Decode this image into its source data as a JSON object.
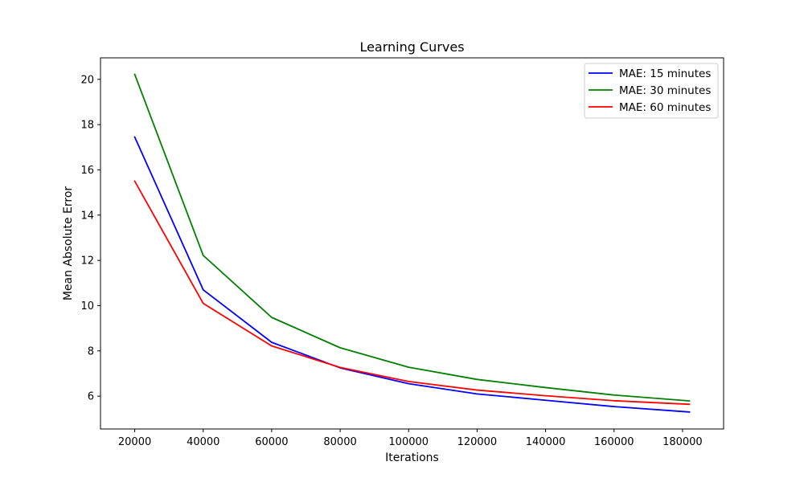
{
  "chart_data": {
    "type": "line",
    "title": "Learning Curves",
    "xlabel": "Iterations",
    "ylabel": "Mean Absolute Error",
    "xlim": [
      10000,
      192000
    ],
    "ylim": [
      4.55,
      20.95
    ],
    "xticks": [
      20000,
      40000,
      60000,
      80000,
      100000,
      120000,
      140000,
      160000,
      180000
    ],
    "yticks": [
      6,
      8,
      10,
      12,
      14,
      16,
      18,
      20
    ],
    "grid": false,
    "legend_position": "top-right",
    "x": [
      20000,
      40000,
      60000,
      80000,
      100000,
      120000,
      140000,
      160000,
      182000
    ],
    "series": [
      {
        "name": "MAE: 15 minutes",
        "color": "#0000ff",
        "values": [
          17.45,
          10.7,
          8.38,
          7.25,
          6.55,
          6.1,
          5.82,
          5.54,
          5.3
        ]
      },
      {
        "name": "MAE: 30 minutes",
        "color": "#008000",
        "values": [
          20.22,
          12.22,
          9.48,
          8.14,
          7.28,
          6.74,
          6.38,
          6.05,
          5.79
        ]
      },
      {
        "name": "MAE: 60 minutes",
        "color": "#ff0000",
        "values": [
          15.5,
          10.1,
          8.22,
          7.27,
          6.65,
          6.27,
          6.02,
          5.8,
          5.64
        ]
      }
    ]
  }
}
